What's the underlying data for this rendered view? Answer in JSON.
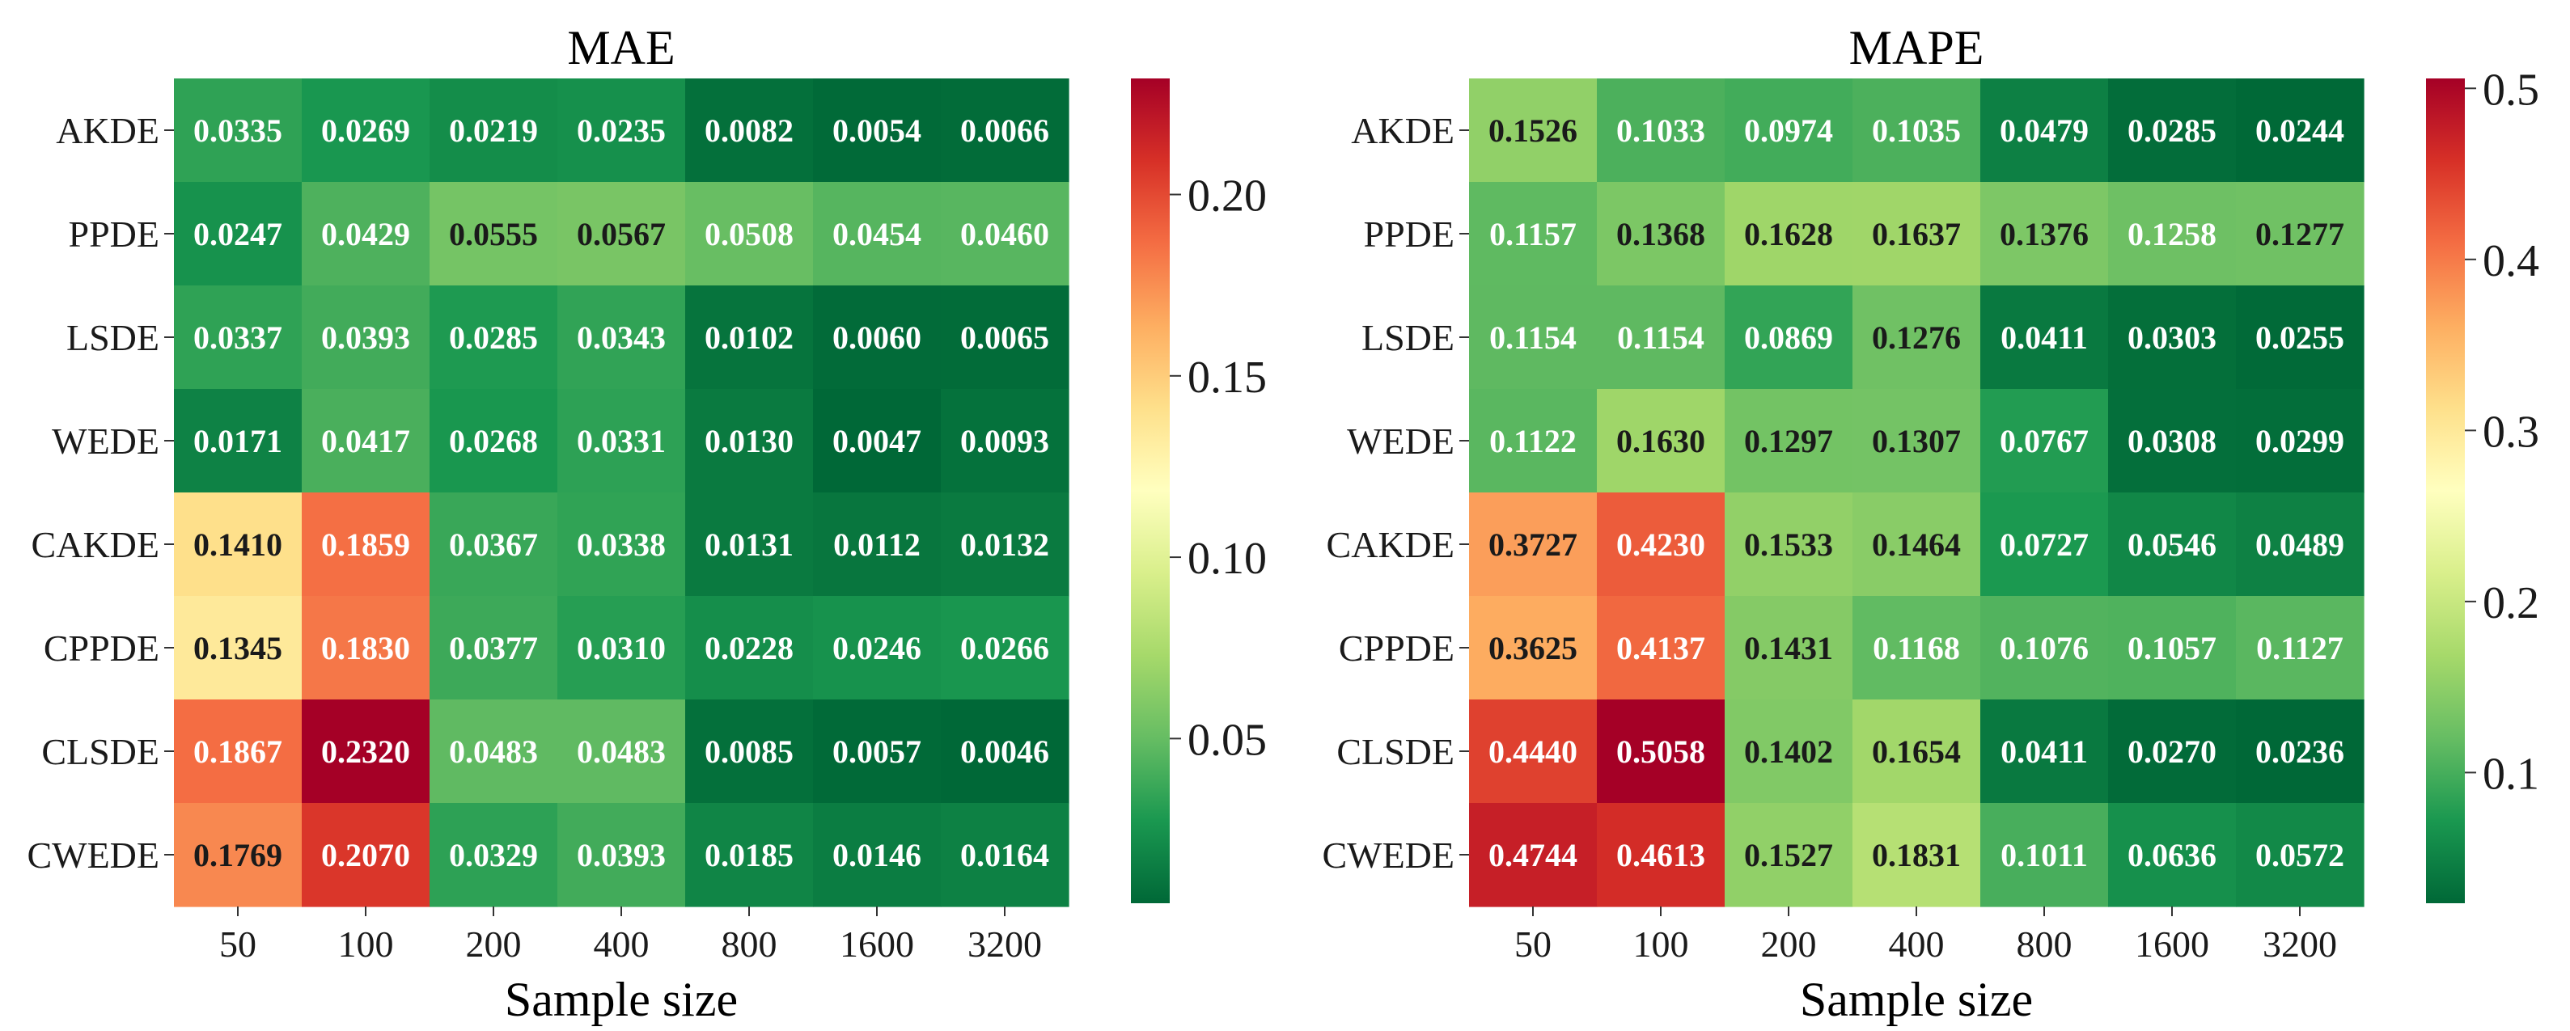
{
  "chart_data": [
    {
      "type": "heatmap",
      "title": "MAE",
      "xlabel": "Sample size",
      "ylabel": "",
      "rows": [
        "AKDE",
        "PPDE",
        "LSDE",
        "WEDE",
        "CAKDE",
        "CPPDE",
        "CLSDE",
        "CWEDE"
      ],
      "columns": [
        "50",
        "100",
        "200",
        "400",
        "800",
        "1600",
        "3200"
      ],
      "values": [
        [
          0.0335,
          0.0269,
          0.0219,
          0.0235,
          0.0082,
          0.0054,
          0.0066
        ],
        [
          0.0247,
          0.0429,
          0.0555,
          0.0567,
          0.0508,
          0.0454,
          0.046
        ],
        [
          0.0337,
          0.0393,
          0.0285,
          0.0343,
          0.0102,
          0.006,
          0.0065
        ],
        [
          0.0171,
          0.0417,
          0.0268,
          0.0331,
          0.013,
          0.0047,
          0.0093
        ],
        [
          0.141,
          0.1859,
          0.0367,
          0.0338,
          0.0131,
          0.0112,
          0.0132
        ],
        [
          0.1345,
          0.183,
          0.0377,
          0.031,
          0.0228,
          0.0246,
          0.0266
        ],
        [
          0.1867,
          0.232,
          0.0483,
          0.0483,
          0.0085,
          0.0057,
          0.0046
        ],
        [
          0.1769,
          0.207,
          0.0329,
          0.0393,
          0.0185,
          0.0146,
          0.0164
        ]
      ],
      "value_labels": [
        [
          "0.0335",
          "0.0269",
          "0.0219",
          "0.0235",
          "0.0082",
          "0.0054",
          "0.0066"
        ],
        [
          "0.0247",
          "0.0429",
          "0.0555",
          "0.0567",
          "0.0508",
          "0.0454",
          "0.0460"
        ],
        [
          "0.0337",
          "0.0393",
          "0.0285",
          "0.0343",
          "0.0102",
          "0.0060",
          "0.0065"
        ],
        [
          "0.0171",
          "0.0417",
          "0.0268",
          "0.0331",
          "0.0130",
          "0.0047",
          "0.0093"
        ],
        [
          "0.1410",
          "0.1859",
          "0.0367",
          "0.0338",
          "0.0131",
          "0.0112",
          "0.0132"
        ],
        [
          "0.1345",
          "0.1830",
          "0.0377",
          "0.0310",
          "0.0228",
          "0.0246",
          "0.0266"
        ],
        [
          "0.1867",
          "0.2320",
          "0.0483",
          "0.0483",
          "0.0085",
          "0.0057",
          "0.0046"
        ],
        [
          "0.1769",
          "0.2070",
          "0.0329",
          "0.0393",
          "0.0185",
          "0.0146",
          "0.0164"
        ]
      ],
      "colorbar": {
        "range": [
          0.0046,
          0.232
        ],
        "ticks": [
          0.05,
          0.1,
          0.15,
          0.2
        ],
        "tick_labels": [
          "0.05",
          "0.10",
          "0.15",
          "0.20"
        ]
      }
    },
    {
      "type": "heatmap",
      "title": "MAPE",
      "xlabel": "Sample size",
      "ylabel": "",
      "rows": [
        "AKDE",
        "PPDE",
        "LSDE",
        "WEDE",
        "CAKDE",
        "CPPDE",
        "CLSDE",
        "CWEDE"
      ],
      "columns": [
        "50",
        "100",
        "200",
        "400",
        "800",
        "1600",
        "3200"
      ],
      "values": [
        [
          0.1526,
          0.1033,
          0.0974,
          0.1035,
          0.0479,
          0.0285,
          0.0244
        ],
        [
          0.1157,
          0.1368,
          0.1628,
          0.1637,
          0.1376,
          0.1258,
          0.1277
        ],
        [
          0.1154,
          0.1154,
          0.0869,
          0.1276,
          0.0411,
          0.0303,
          0.0255
        ],
        [
          0.1122,
          0.163,
          0.1297,
          0.1307,
          0.0767,
          0.0308,
          0.0299
        ],
        [
          0.3727,
          0.423,
          0.1533,
          0.1464,
          0.0727,
          0.0546,
          0.0489
        ],
        [
          0.3625,
          0.4137,
          0.1431,
          0.1168,
          0.1076,
          0.1057,
          0.1127
        ],
        [
          0.444,
          0.5058,
          0.1402,
          0.1654,
          0.0411,
          0.027,
          0.0236
        ],
        [
          0.4744,
          0.4613,
          0.1527,
          0.1831,
          0.1011,
          0.0636,
          0.0572
        ]
      ],
      "value_labels": [
        [
          "0.1526",
          "0.1033",
          "0.0974",
          "0.1035",
          "0.0479",
          "0.0285",
          "0.0244"
        ],
        [
          "0.1157",
          "0.1368",
          "0.1628",
          "0.1637",
          "0.1376",
          "0.1258",
          "0.1277"
        ],
        [
          "0.1154",
          "0.1154",
          "0.0869",
          "0.1276",
          "0.0411",
          "0.0303",
          "0.0255"
        ],
        [
          "0.1122",
          "0.1630",
          "0.1297",
          "0.1307",
          "0.0767",
          "0.0308",
          "0.0299"
        ],
        [
          "0.3727",
          "0.4230",
          "0.1533",
          "0.1464",
          "0.0727",
          "0.0546",
          "0.0489"
        ],
        [
          "0.3625",
          "0.4137",
          "0.1431",
          "0.1168",
          "0.1076",
          "0.1057",
          "0.1127"
        ],
        [
          "0.4440",
          "0.5058",
          "0.1402",
          "0.1654",
          "0.0411",
          "0.0270",
          "0.0236"
        ],
        [
          "0.4744",
          "0.4613",
          "0.1527",
          "0.1831",
          "0.1011",
          "0.0636",
          "0.0572"
        ]
      ],
      "colorbar": {
        "range": [
          0.0236,
          0.5058
        ],
        "ticks": [
          0.1,
          0.2,
          0.3,
          0.4,
          0.5
        ],
        "tick_labels": [
          "0.1",
          "0.2",
          "0.3",
          "0.4",
          "0.5"
        ]
      }
    }
  ],
  "colormap": {
    "name": "RdYlGn_r",
    "stops": [
      "#006837",
      "#1a9850",
      "#66bd63",
      "#a6d96a",
      "#d9ef8b",
      "#ffffbf",
      "#fee08b",
      "#fdae61",
      "#f46d43",
      "#d73027",
      "#a50026"
    ]
  }
}
